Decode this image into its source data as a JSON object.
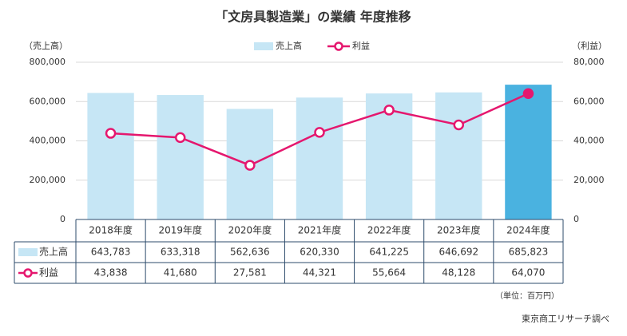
{
  "chart_data": {
    "type": "bar-line",
    "title": "「文房具製造業」の業績 年度推移",
    "y_label": "（売上高）",
    "y2_label": "（利益）",
    "unit_note": "（単位：百万円）",
    "source": "東京商工リサーチ調べ",
    "categories": [
      "2018年度",
      "2019年度",
      "2020年度",
      "2021年度",
      "2022年度",
      "2023年度",
      "2024年度"
    ],
    "series": [
      {
        "name": "売上高",
        "type": "bar",
        "axis": "y",
        "color": "#c6e6f5",
        "colors": [
          "#c6e6f5",
          "#c6e6f5",
          "#c6e6f5",
          "#c6e6f5",
          "#c6e6f5",
          "#c6e6f5",
          "#4ab2e0"
        ],
        "values": [
          643783,
          633318,
          562636,
          620330,
          641225,
          646692,
          685823
        ],
        "value_labels": [
          "643,783",
          "633,318",
          "562,636",
          "620,330",
          "641,225",
          "646,692",
          "685,823"
        ]
      },
      {
        "name": "利益",
        "type": "line",
        "axis": "y2",
        "color": "#e5176e",
        "marker_fills": [
          "#ffffff",
          "#ffffff",
          "#ffffff",
          "#ffffff",
          "#ffffff",
          "#ffffff",
          "#e5176e"
        ],
        "values": [
          43838,
          41680,
          27581,
          44321,
          55664,
          48128,
          64070
        ],
        "value_labels": [
          "43,838",
          "41,680",
          "27,581",
          "44,321",
          "55,664",
          "48,128",
          "64,070"
        ]
      }
    ],
    "ylim": [
      0,
      800000
    ],
    "yticks": [
      0,
      {
        "value": 200000,
        "label": "200,000"
      },
      {
        "value": 400000,
        "label": "400,000"
      },
      {
        "value": 600000,
        "label": "600,000"
      },
      {
        "value": 800000,
        "label": "800,000"
      }
    ],
    "y2lim": [
      0,
      80000
    ],
    "y2ticks": [
      0,
      {
        "value": 20000,
        "label": "20,000"
      },
      {
        "value": 40000,
        "label": "40,000"
      },
      {
        "value": 60000,
        "label": "60,000"
      },
      {
        "value": 80000,
        "label": "80,000"
      }
    ],
    "grid": true,
    "legend": "top"
  }
}
